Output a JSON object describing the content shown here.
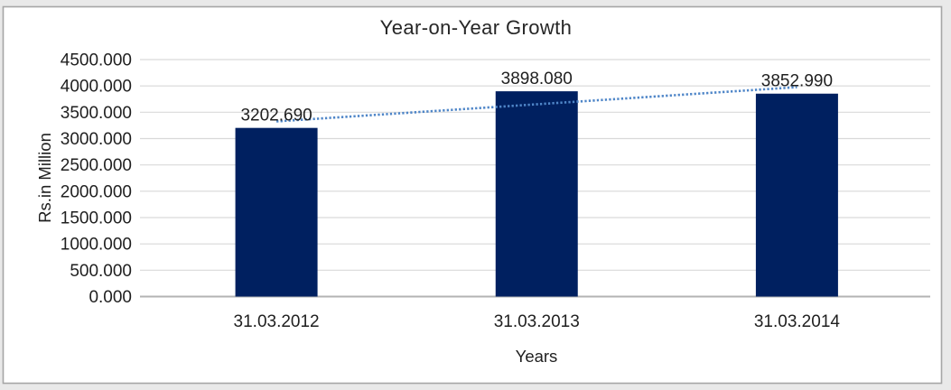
{
  "frame": {
    "outer_background": "#e9e9e9",
    "canvas_background": "#ffffff",
    "canvas_border_color": "#a6a6a6"
  },
  "chart_data": {
    "type": "bar",
    "title": "Year-on-Year Growth",
    "xlabel": "Years",
    "ylabel": "Rs.in Million",
    "categories": [
      "31.03.2012",
      "31.03.2013",
      "31.03.2014"
    ],
    "values": [
      3202.69,
      3898.08,
      3852.99
    ],
    "data_labels": [
      "3202.690",
      "3898.080",
      "3852.990"
    ],
    "y_ticks": [
      "0.000",
      "500.000",
      "1000.000",
      "1500.000",
      "2000.000",
      "2500.000",
      "3000.000",
      "3500.000",
      "4000.000",
      "4500.000"
    ],
    "ylim": [
      0,
      4500
    ],
    "grid": true,
    "legend": "none",
    "bar_color": "#002060",
    "gridline_color": "#d9d9d9",
    "axis_line_color": "#b3b3b3",
    "trendline": {
      "type": "linear",
      "style": "dotted",
      "color": "#4f86c8"
    }
  }
}
